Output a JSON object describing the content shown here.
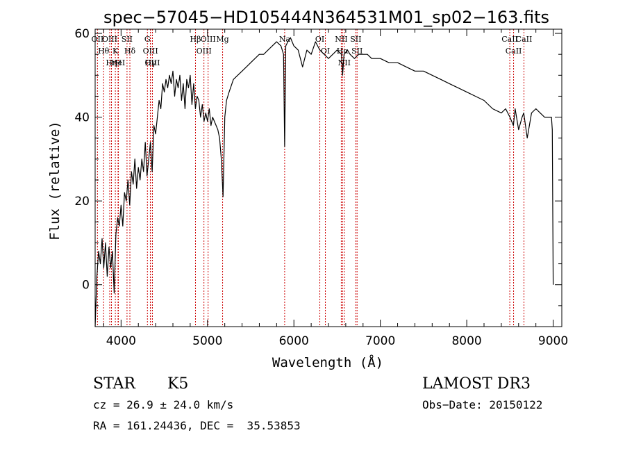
{
  "chart_data": {
    "type": "line",
    "title": "spec−57045−HD105444N364531M01_sp02−163.fits",
    "xlabel": "Wavelength (Å)",
    "ylabel": "Flux (relative)",
    "xlim": [
      3700,
      9100
    ],
    "ylim": [
      -10,
      61
    ],
    "xticks": [
      4000,
      5000,
      6000,
      7000,
      8000,
      9000
    ],
    "xtick_labels": [
      "4000",
      "5000",
      "6000",
      "7000",
      "8000",
      "9000"
    ],
    "yticks": [
      0,
      20,
      40,
      60
    ],
    "ytick_labels": [
      "0",
      "20",
      "40",
      "60"
    ],
    "grid": false,
    "series": [
      {
        "name": "flux",
        "x": [
          3700,
          3720,
          3740,
          3760,
          3780,
          3800,
          3820,
          3840,
          3860,
          3880,
          3900,
          3920,
          3940,
          3960,
          3980,
          4000,
          4020,
          4040,
          4060,
          4080,
          4100,
          4120,
          4140,
          4160,
          4180,
          4200,
          4220,
          4240,
          4260,
          4280,
          4300,
          4320,
          4340,
          4360,
          4380,
          4400,
          4420,
          4440,
          4460,
          4480,
          4500,
          4520,
          4540,
          4560,
          4580,
          4600,
          4620,
          4640,
          4660,
          4680,
          4700,
          4720,
          4740,
          4760,
          4780,
          4800,
          4820,
          4840,
          4860,
          4880,
          4900,
          4920,
          4940,
          4960,
          4980,
          5000,
          5020,
          5040,
          5060,
          5080,
          5100,
          5120,
          5140,
          5160,
          5180,
          5200,
          5220,
          5250,
          5300,
          5350,
          5400,
          5450,
          5500,
          5550,
          5600,
          5650,
          5700,
          5750,
          5800,
          5850,
          5880,
          5893,
          5906,
          5930,
          5960,
          6000,
          6050,
          6100,
          6150,
          6200,
          6250,
          6300,
          6350,
          6400,
          6450,
          6500,
          6550,
          6563,
          6580,
          6620,
          6650,
          6700,
          6750,
          6800,
          6850,
          6900,
          6950,
          7000,
          7100,
          7200,
          7300,
          7400,
          7500,
          7600,
          7700,
          7800,
          7900,
          8000,
          8100,
          8200,
          8300,
          8400,
          8450,
          8500,
          8540,
          8560,
          8600,
          8640,
          8660,
          8700,
          8750,
          8800,
          8850,
          8900,
          8950,
          8980,
          8990,
          9000
        ],
        "y": [
          -10,
          2,
          8,
          5,
          11,
          4,
          10,
          2,
          9,
          4,
          8,
          -2,
          12,
          16,
          14,
          19,
          14,
          22,
          20,
          25,
          19,
          27,
          24,
          30,
          23,
          28,
          25,
          30,
          27,
          34,
          26,
          30,
          34,
          27,
          38,
          36,
          40,
          44,
          42,
          48,
          46,
          49,
          47,
          50,
          48,
          51,
          45,
          49,
          47,
          50,
          44,
          48,
          42,
          49,
          47,
          50,
          43,
          48,
          42,
          45,
          44,
          40,
          43,
          39,
          41,
          39,
          42,
          38,
          40,
          39,
          38,
          37,
          35,
          30,
          21,
          40,
          44,
          46,
          49,
          50,
          51,
          52,
          53,
          54,
          55,
          55,
          56,
          57,
          58,
          57,
          55,
          33,
          57,
          58,
          59,
          57,
          56,
          52,
          56,
          55,
          58,
          56,
          55,
          54,
          55,
          56,
          55,
          50,
          55,
          56,
          55,
          54,
          55,
          55,
          55,
          54,
          54,
          54,
          53,
          53,
          52,
          51,
          51,
          50,
          49,
          48,
          47,
          46,
          45,
          44,
          42,
          41,
          42,
          40,
          38,
          42,
          37,
          40,
          41,
          35,
          41,
          42,
          41,
          40,
          40,
          40,
          37,
          0
        ]
      }
    ],
    "lines": [
      {
        "label": "OII",
        "x": 3727
      },
      {
        "label": "Hθ",
        "x": 3798
      },
      {
        "label": "OIII",
        "x": 3869
      },
      {
        "label": "Hη",
        "x": 3889
      },
      {
        "label": "K",
        "x": 3934
      },
      {
        "label": "HeI",
        "x": 3965
      },
      {
        "label": "H",
        "x": 3969
      },
      {
        "label": "SII",
        "x": 4069
      },
      {
        "label": "Hδ",
        "x": 4102
      },
      {
        "label": "G",
        "x": 4305
      },
      {
        "label": "OIII",
        "x": 4340
      },
      {
        "label": "Hγ",
        "x": 4340
      },
      {
        "label": "OIII",
        "x": 4363
      },
      {
        "label": "Hβ",
        "x": 4861
      },
      {
        "label": "OIII",
        "x": 4959
      },
      {
        "label": "OIII",
        "x": 5007
      },
      {
        "label": "Mg",
        "x": 5175
      },
      {
        "label": "Na",
        "x": 5893
      },
      {
        "label": "OI",
        "x": 6300
      },
      {
        "label": "OI",
        "x": 6364
      },
      {
        "label": "NII",
        "x": 6548
      },
      {
        "label": "Hα",
        "x": 6563
      },
      {
        "label": "NII",
        "x": 6583
      },
      {
        "label": "SII",
        "x": 6716
      },
      {
        "label": "SII",
        "x": 6731
      },
      {
        "label": "CaII",
        "x": 8498
      },
      {
        "label": "CaII",
        "x": 8542
      },
      {
        "label": "CaII",
        "x": 8662
      }
    ]
  },
  "info": {
    "class": "STAR",
    "subclass": "K5",
    "survey": "LAMOST DR3",
    "cz": "cz = 26.9 ± 24.0 km/s",
    "obs_date": "Obs−Date: 20150122",
    "coords": "RA = 161.24436, DEC =  35.53853"
  },
  "colors": {
    "spectrum": "#000000",
    "axes": "#000000",
    "line_marker": "#cc0000",
    "background": "#ffffff"
  }
}
